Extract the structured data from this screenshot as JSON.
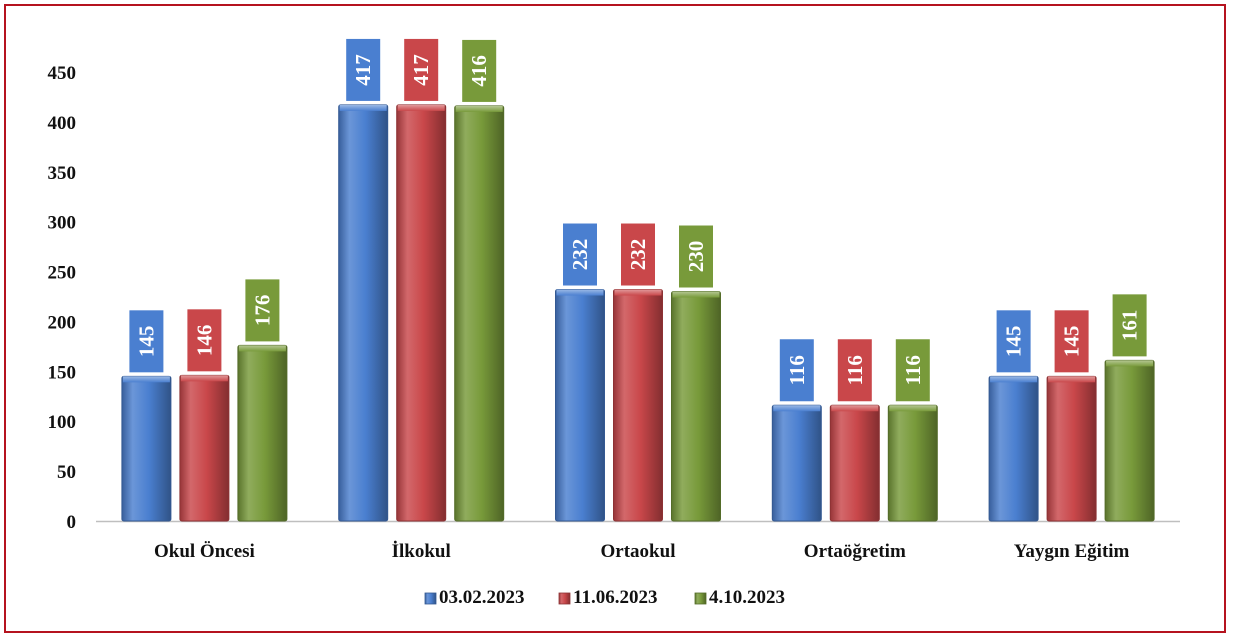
{
  "chart_data": {
    "type": "bar",
    "title": "",
    "xlabel": "",
    "ylabel": "",
    "ylim": [
      0,
      450
    ],
    "yticks": [
      0,
      50,
      100,
      150,
      200,
      250,
      300,
      350,
      400,
      450
    ],
    "grid": false,
    "legend_position": "bottom",
    "categories": [
      "Okul Öncesi",
      "İlkokul",
      "Ortaokul",
      "Ortaöğretim",
      "Yaygın Eğitim"
    ],
    "series": [
      {
        "name": "03.02.2023",
        "color": "#4a7fd0",
        "values": [
          145,
          417,
          232,
          116,
          145
        ]
      },
      {
        "name": "11.06.2023",
        "color": "#c9474a",
        "values": [
          146,
          417,
          232,
          116,
          145
        ]
      },
      {
        "name": "4.10.2023",
        "color": "#789a3a",
        "values": [
          176,
          416,
          230,
          116,
          161
        ]
      }
    ]
  }
}
